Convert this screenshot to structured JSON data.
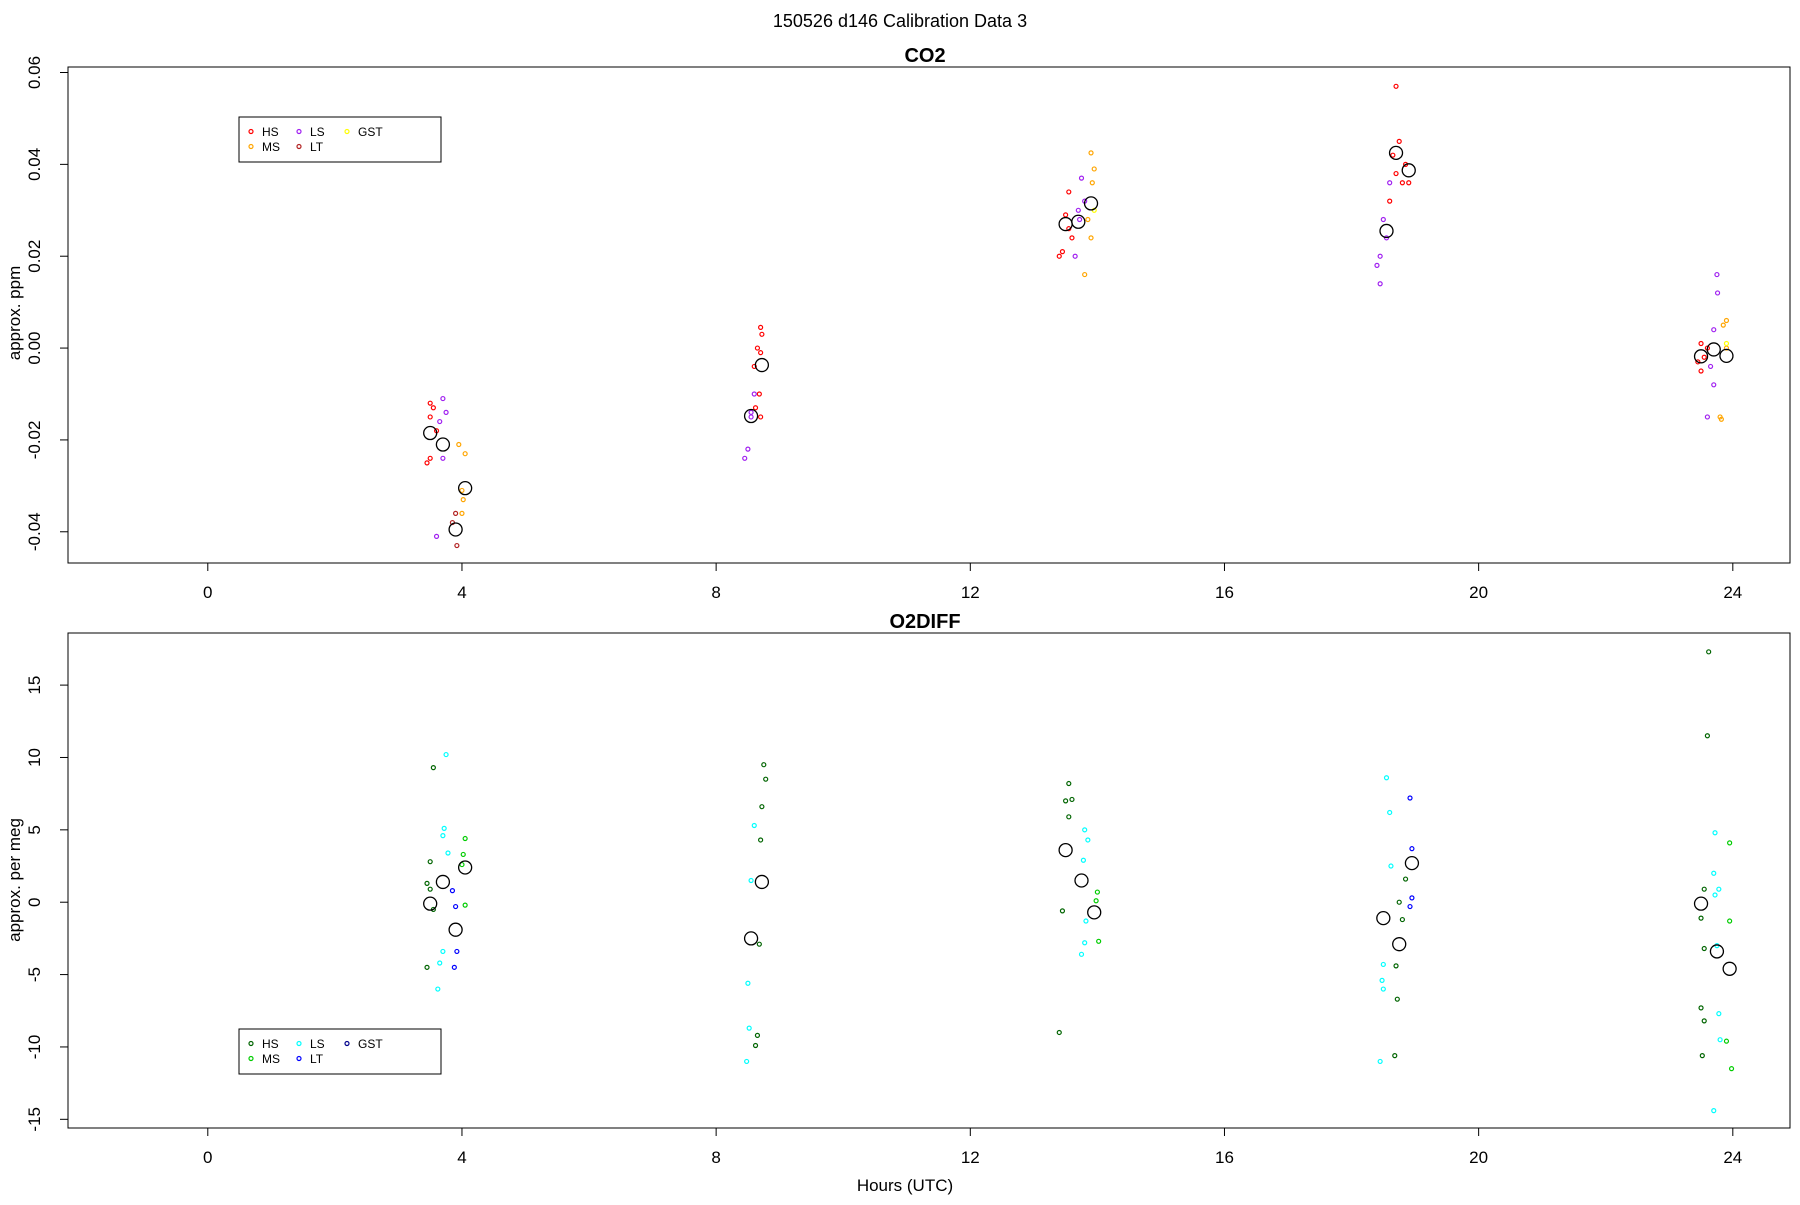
{
  "figure": {
    "title": "150526   d146   Calibration Data 3"
  },
  "chart_data": [
    {
      "type": "scatter",
      "title": "CO2",
      "xlabel": "",
      "ylabel": "approx. ppm",
      "xlim": [
        -2.2,
        24.9
      ],
      "ylim": [
        -0.0468,
        0.0612
      ],
      "xticks": [
        "0",
        "4",
        "8",
        "12",
        "16",
        "20",
        "24"
      ],
      "yticks": [
        "-0.04",
        "-0.02",
        "0.00",
        "0.02",
        "0.04",
        "0.06"
      ],
      "grid": false,
      "legend_position": "top-left",
      "legend": [
        {
          "label": "HS",
          "color": "#ff0000"
        },
        {
          "label": "MS",
          "color": "#ffa500"
        },
        {
          "label": "LS",
          "color": "#a020f0"
        },
        {
          "label": "LT",
          "color": "#b22222"
        },
        {
          "label": "GST",
          "color": "#ffff00"
        }
      ],
      "series": [
        {
          "name": "HS",
          "color": "#ff0000",
          "points": [
            [
              3.5,
              -0.012
            ],
            [
              3.55,
              -0.013
            ],
            [
              3.5,
              -0.015
            ],
            [
              3.6,
              -0.018
            ],
            [
              3.5,
              -0.024
            ],
            [
              3.45,
              -0.025
            ],
            [
              8.7,
              0.0045
            ],
            [
              8.72,
              0.003
            ],
            [
              8.65,
              0.0
            ],
            [
              8.7,
              -0.001
            ],
            [
              8.6,
              -0.004
            ],
            [
              8.68,
              -0.01
            ],
            [
              8.62,
              -0.013
            ],
            [
              8.7,
              -0.015
            ],
            [
              13.55,
              0.034
            ],
            [
              13.5,
              0.029
            ],
            [
              13.45,
              0.021
            ],
            [
              13.4,
              0.02
            ],
            [
              13.6,
              0.024
            ],
            [
              13.55,
              0.026
            ],
            [
              18.7,
              0.057
            ],
            [
              18.75,
              0.045
            ],
            [
              18.65,
              0.042
            ],
            [
              18.85,
              0.04
            ],
            [
              18.7,
              0.038
            ],
            [
              18.8,
              0.036
            ],
            [
              18.6,
              0.032
            ],
            [
              18.9,
              0.036
            ],
            [
              23.5,
              0.001
            ],
            [
              23.55,
              -0.002
            ],
            [
              23.45,
              -0.003
            ],
            [
              23.5,
              -0.005
            ],
            [
              23.6,
              0.0
            ]
          ]
        },
        {
          "name": "MS",
          "color": "#ffa500",
          "points": [
            [
              3.95,
              -0.021
            ],
            [
              4.05,
              -0.023
            ],
            [
              4.0,
              -0.031
            ],
            [
              4.02,
              -0.033
            ],
            [
              4.0,
              -0.036
            ],
            [
              13.9,
              0.0425
            ],
            [
              13.95,
              0.039
            ],
            [
              13.92,
              0.036
            ],
            [
              13.85,
              0.028
            ],
            [
              13.9,
              0.024
            ],
            [
              13.8,
              0.016
            ],
            [
              23.85,
              0.005
            ],
            [
              23.9,
              0.006
            ],
            [
              23.9,
              0.0
            ],
            [
              23.8,
              -0.015
            ],
            [
              23.82,
              -0.0155
            ]
          ]
        },
        {
          "name": "LS",
          "color": "#a020f0",
          "points": [
            [
              3.7,
              -0.011
            ],
            [
              3.75,
              -0.014
            ],
            [
              3.65,
              -0.016
            ],
            [
              3.6,
              -0.041
            ],
            [
              3.7,
              -0.024
            ],
            [
              8.6,
              -0.01
            ],
            [
              8.55,
              -0.014
            ],
            [
              8.5,
              -0.022
            ],
            [
              8.45,
              -0.024
            ],
            [
              8.55,
              -0.015
            ],
            [
              13.75,
              0.037
            ],
            [
              13.8,
              0.032
            ],
            [
              13.7,
              0.03
            ],
            [
              13.72,
              0.028
            ],
            [
              13.65,
              0.02
            ],
            [
              18.6,
              0.036
            ],
            [
              18.5,
              0.028
            ],
            [
              18.45,
              0.02
            ],
            [
              18.4,
              0.018
            ],
            [
              18.45,
              0.014
            ],
            [
              18.55,
              0.024
            ],
            [
              23.75,
              0.016
            ],
            [
              23.76,
              0.012
            ],
            [
              23.7,
              0.004
            ],
            [
              23.65,
              -0.004
            ],
            [
              23.7,
              -0.008
            ],
            [
              23.6,
              -0.015
            ]
          ]
        },
        {
          "name": "LT",
          "color": "#b22222",
          "points": [
            [
              3.9,
              -0.036
            ],
            [
              3.92,
              -0.043
            ],
            [
              3.85,
              -0.038
            ]
          ]
        },
        {
          "name": "GST",
          "color": "#ffff00",
          "points": [
            [
              13.95,
              0.03
            ],
            [
              23.9,
              0.001
            ]
          ]
        },
        {
          "name": "Mean",
          "color": "#000000",
          "points": [
            [
              3.5,
              -0.0185
            ],
            [
              3.7,
              -0.021
            ],
            [
              3.9,
              -0.0395
            ],
            [
              4.05,
              -0.0305
            ],
            [
              8.55,
              -0.0148
            ],
            [
              8.72,
              -0.0037
            ],
            [
              13.5,
              0.027
            ],
            [
              13.7,
              0.0275
            ],
            [
              13.9,
              0.0315
            ],
            [
              18.55,
              0.0255
            ],
            [
              18.7,
              0.0425
            ],
            [
              18.9,
              0.0387
            ],
            [
              23.5,
              -0.0018
            ],
            [
              23.7,
              -0.0003
            ],
            [
              23.9,
              -0.0017
            ]
          ]
        }
      ]
    },
    {
      "type": "scatter",
      "title": "O2DIFF",
      "xlabel": "Hours (UTC)",
      "ylabel": "approx. per meg",
      "xlim": [
        -2.2,
        24.9
      ],
      "ylim": [
        -15.6,
        18.6
      ],
      "xticks": [
        "0",
        "4",
        "8",
        "12",
        "16",
        "20",
        "24"
      ],
      "yticks": [
        "-15",
        "-10",
        "-5",
        "0",
        "5",
        "10",
        "15"
      ],
      "grid": false,
      "legend_position": "bottom-left",
      "legend": [
        {
          "label": "HS",
          "color": "#006400"
        },
        {
          "label": "MS",
          "color": "#00cc00"
        },
        {
          "label": "LS",
          "color": "#00ffff"
        },
        {
          "label": "LT",
          "color": "#0000ff"
        },
        {
          "label": "GST",
          "color": "#00008b"
        }
      ],
      "series": [
        {
          "name": "HS",
          "color": "#006400",
          "points": [
            [
              3.55,
              9.3
            ],
            [
              3.5,
              2.8
            ],
            [
              3.45,
              1.3
            ],
            [
              3.5,
              0.9
            ],
            [
              3.55,
              -0.5
            ],
            [
              3.45,
              -4.5
            ],
            [
              8.75,
              9.5
            ],
            [
              8.78,
              8.5
            ],
            [
              8.72,
              6.6
            ],
            [
              8.7,
              4.3
            ],
            [
              8.68,
              -2.9
            ],
            [
              8.65,
              -9.2
            ],
            [
              8.62,
              -9.9
            ],
            [
              13.55,
              8.2
            ],
            [
              13.6,
              7.1
            ],
            [
              13.5,
              7.0
            ],
            [
              13.55,
              5.9
            ],
            [
              13.45,
              -0.6
            ],
            [
              13.4,
              -9.0
            ],
            [
              18.85,
              1.6
            ],
            [
              18.75,
              0.0
            ],
            [
              18.8,
              -1.2
            ],
            [
              18.7,
              -4.4
            ],
            [
              18.72,
              -6.7
            ],
            [
              18.68,
              -10.6
            ],
            [
              23.55,
              0.9
            ],
            [
              23.5,
              -1.1
            ],
            [
              23.55,
              -3.2
            ],
            [
              23.5,
              -7.3
            ],
            [
              23.55,
              -8.2
            ],
            [
              23.52,
              -10.6
            ],
            [
              23.6,
              11.5
            ],
            [
              23.62,
              17.3
            ]
          ]
        },
        {
          "name": "MS",
          "color": "#00cc00",
          "points": [
            [
              4.05,
              4.4
            ],
            [
              4.02,
              3.3
            ],
            [
              4.0,
              2.6
            ],
            [
              4.05,
              -0.2
            ],
            [
              14.0,
              0.7
            ],
            [
              13.98,
              0.1
            ],
            [
              14.02,
              -2.7
            ],
            [
              23.95,
              4.1
            ],
            [
              23.95,
              -1.3
            ],
            [
              23.9,
              -9.6
            ],
            [
              23.98,
              -11.5
            ]
          ]
        },
        {
          "name": "LS",
          "color": "#00ffff",
          "points": [
            [
              3.75,
              10.2
            ],
            [
              3.72,
              5.1
            ],
            [
              3.7,
              4.6
            ],
            [
              3.78,
              3.4
            ],
            [
              3.7,
              -3.4
            ],
            [
              3.65,
              -4.2
            ],
            [
              3.62,
              -6.0
            ],
            [
              8.6,
              5.3
            ],
            [
              8.55,
              1.5
            ],
            [
              8.5,
              -5.6
            ],
            [
              8.52,
              -8.7
            ],
            [
              8.48,
              -11.0
            ],
            [
              13.8,
              5.0
            ],
            [
              13.85,
              4.3
            ],
            [
              13.78,
              2.9
            ],
            [
              13.82,
              -1.3
            ],
            [
              13.8,
              -2.8
            ],
            [
              13.75,
              -3.6
            ],
            [
              18.55,
              8.6
            ],
            [
              18.6,
              6.2
            ],
            [
              18.62,
              2.5
            ],
            [
              18.5,
              -4.3
            ],
            [
              18.48,
              -5.4
            ],
            [
              18.5,
              -6.0
            ],
            [
              18.45,
              -11.0
            ],
            [
              23.72,
              4.8
            ],
            [
              23.7,
              2.0
            ],
            [
              23.78,
              0.9
            ],
            [
              23.72,
              0.5
            ],
            [
              23.75,
              -3.0
            ],
            [
              23.78,
              -7.7
            ],
            [
              23.8,
              -9.5
            ],
            [
              23.7,
              -14.4
            ]
          ]
        },
        {
          "name": "LT",
          "color": "#0000ff",
          "points": [
            [
              3.85,
              0.8
            ],
            [
              3.9,
              -0.3
            ],
            [
              3.92,
              -3.4
            ],
            [
              3.88,
              -4.5
            ],
            [
              18.92,
              7.2
            ],
            [
              18.95,
              3.7
            ],
            [
              18.95,
              0.3
            ],
            [
              18.92,
              -0.3
            ]
          ]
        },
        {
          "name": "GST",
          "color": "#00008b",
          "points": []
        },
        {
          "name": "Mean",
          "color": "#000000",
          "points": [
            [
              3.5,
              -0.1
            ],
            [
              3.7,
              1.4
            ],
            [
              3.9,
              -1.9
            ],
            [
              4.05,
              2.4
            ],
            [
              8.55,
              -2.5
            ],
            [
              8.72,
              1.4
            ],
            [
              13.5,
              3.6
            ],
            [
              13.75,
              1.5
            ],
            [
              13.95,
              -0.7
            ],
            [
              18.5,
              -1.1
            ],
            [
              18.75,
              -2.9
            ],
            [
              18.95,
              2.7
            ],
            [
              23.5,
              -0.1
            ],
            [
              23.75,
              -3.4
            ],
            [
              23.95,
              -4.6
            ]
          ]
        }
      ]
    }
  ]
}
